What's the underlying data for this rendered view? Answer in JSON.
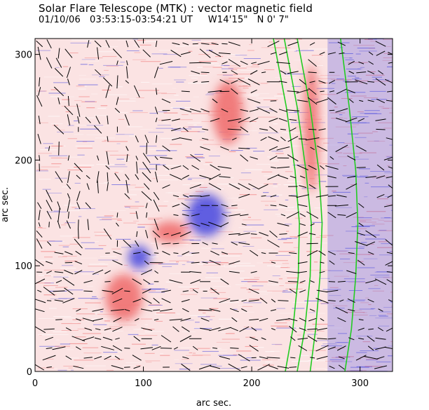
{
  "header": {
    "title": "Solar Flare Telescope (MTK) : vector magnetic field",
    "date": "01/10/06",
    "time_range": "03:53:15-03:54:21 UT",
    "position": "W14'15\"   N 0' 7\""
  },
  "chart_data": {
    "type": "heatmap",
    "title": "Solar Flare Telescope (MTK) : vector magnetic field",
    "xlabel": "arc sec.",
    "ylabel": "arc sec.",
    "xlim": [
      0,
      330
    ],
    "ylim": [
      0,
      315
    ],
    "xticks": [
      0,
      100,
      200,
      300
    ],
    "yticks": [
      0,
      100,
      200,
      300
    ],
    "colormap": {
      "positive": "#f07070",
      "negative": "#4f4fe0",
      "background": "#ffffff"
    },
    "magnetic_regions": [
      {
        "polarity": "negative",
        "cx": 158,
        "cy": 148,
        "rx": 17,
        "ry": 20
      },
      {
        "polarity": "negative",
        "cx": 96,
        "cy": 108,
        "rx": 10,
        "ry": 11
      },
      {
        "polarity": "positive",
        "cx": 82,
        "cy": 70,
        "rx": 17,
        "ry": 22
      },
      {
        "polarity": "positive",
        "cx": 125,
        "cy": 132,
        "rx": 16,
        "ry": 10
      },
      {
        "polarity": "positive",
        "cx": 178,
        "cy": 245,
        "rx": 14,
        "ry": 30
      },
      {
        "polarity": "positive",
        "cx": 255,
        "cy": 230,
        "rx": 7,
        "ry": 60
      }
    ],
    "contour_color": "#22cc22",
    "contour_lines": [
      {
        "x": [
          220,
          232,
          240,
          244,
          243,
          238,
          231
        ],
        "y": [
          315,
          250,
          190,
          140,
          90,
          40,
          0
        ]
      },
      {
        "x": [
          230,
          242,
          250,
          255,
          254,
          249,
          242
        ],
        "y": [
          315,
          250,
          190,
          140,
          90,
          40,
          0
        ]
      },
      {
        "x": [
          242,
          254,
          262,
          265,
          263,
          259,
          254
        ],
        "y": [
          315,
          250,
          190,
          140,
          90,
          40,
          0
        ]
      },
      {
        "x": [
          282,
          290,
          296,
          298,
          296,
          292,
          286
        ],
        "y": [
          315,
          250,
          190,
          140,
          90,
          40,
          0
        ]
      }
    ],
    "vector_field": {
      "color": "#000000",
      "spacing_arcsec": 9
    }
  }
}
